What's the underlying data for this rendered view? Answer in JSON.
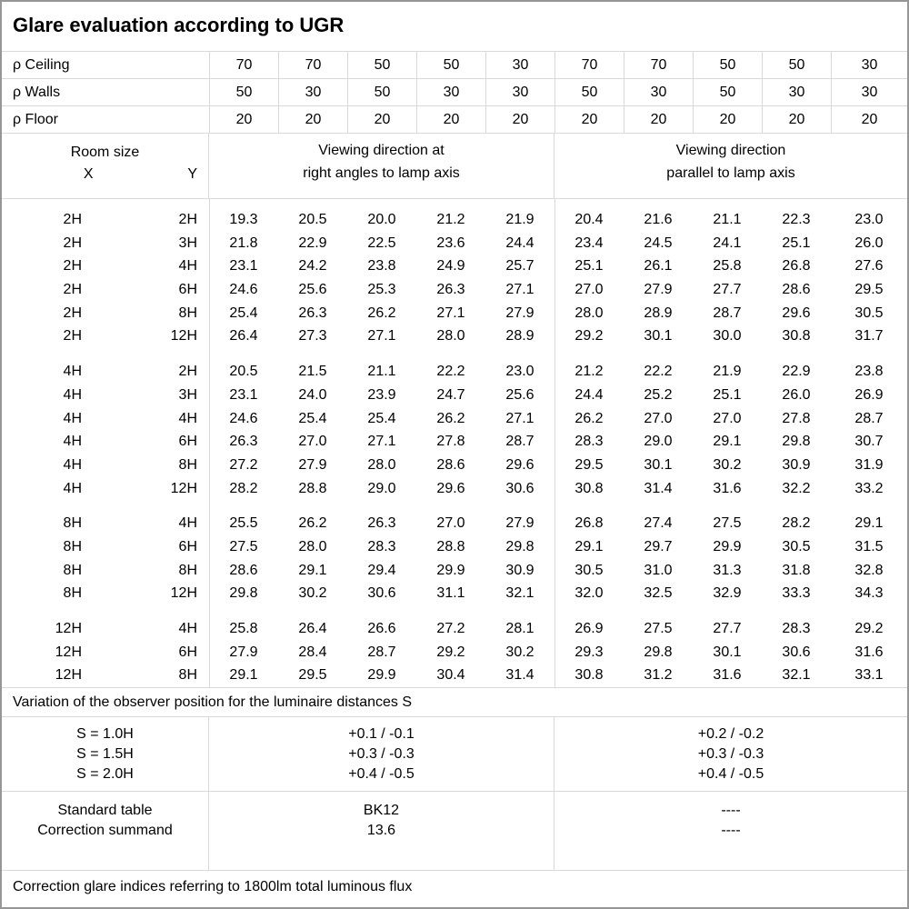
{
  "title": "Glare evaluation according to UGR",
  "reflectances": [
    {
      "label": "ρ Ceiling",
      "values": [
        "70",
        "70",
        "50",
        "50",
        "30",
        "70",
        "70",
        "50",
        "50",
        "30"
      ]
    },
    {
      "label": "ρ Walls",
      "values": [
        "50",
        "30",
        "50",
        "30",
        "30",
        "50",
        "30",
        "50",
        "30",
        "30"
      ]
    },
    {
      "label": "ρ Floor",
      "values": [
        "20",
        "20",
        "20",
        "20",
        "20",
        "20",
        "20",
        "20",
        "20",
        "20"
      ]
    }
  ],
  "header": {
    "room_size_label": "Room size",
    "x_label": "X",
    "y_label": "Y",
    "section1_line1": "Viewing direction at",
    "section1_line2": "right angles to lamp axis",
    "section2_line1": "Viewing direction",
    "section2_line2": "parallel to lamp axis"
  },
  "groups": [
    {
      "rows": [
        {
          "x": "2H",
          "y": "2H",
          "values": [
            "19.3",
            "20.5",
            "20.0",
            "21.2",
            "21.9",
            "20.4",
            "21.6",
            "21.1",
            "22.3",
            "23.0"
          ]
        },
        {
          "x": "2H",
          "y": "3H",
          "values": [
            "21.8",
            "22.9",
            "22.5",
            "23.6",
            "24.4",
            "23.4",
            "24.5",
            "24.1",
            "25.1",
            "26.0"
          ]
        },
        {
          "x": "2H",
          "y": "4H",
          "values": [
            "23.1",
            "24.2",
            "23.8",
            "24.9",
            "25.7",
            "25.1",
            "26.1",
            "25.8",
            "26.8",
            "27.6"
          ]
        },
        {
          "x": "2H",
          "y": "6H",
          "values": [
            "24.6",
            "25.6",
            "25.3",
            "26.3",
            "27.1",
            "27.0",
            "27.9",
            "27.7",
            "28.6",
            "29.5"
          ]
        },
        {
          "x": "2H",
          "y": "8H",
          "values": [
            "25.4",
            "26.3",
            "26.2",
            "27.1",
            "27.9",
            "28.0",
            "28.9",
            "28.7",
            "29.6",
            "30.5"
          ]
        },
        {
          "x": "2H",
          "y": "12H",
          "values": [
            "26.4",
            "27.3",
            "27.1",
            "28.0",
            "28.9",
            "29.2",
            "30.1",
            "30.0",
            "30.8",
            "31.7"
          ]
        }
      ]
    },
    {
      "rows": [
        {
          "x": "4H",
          "y": "2H",
          "values": [
            "20.5",
            "21.5",
            "21.1",
            "22.2",
            "23.0",
            "21.2",
            "22.2",
            "21.9",
            "22.9",
            "23.8"
          ]
        },
        {
          "x": "4H",
          "y": "3H",
          "values": [
            "23.1",
            "24.0",
            "23.9",
            "24.7",
            "25.6",
            "24.4",
            "25.2",
            "25.1",
            "26.0",
            "26.9"
          ]
        },
        {
          "x": "4H",
          "y": "4H",
          "values": [
            "24.6",
            "25.4",
            "25.4",
            "26.2",
            "27.1",
            "26.2",
            "27.0",
            "27.0",
            "27.8",
            "28.7"
          ]
        },
        {
          "x": "4H",
          "y": "6H",
          "values": [
            "26.3",
            "27.0",
            "27.1",
            "27.8",
            "28.7",
            "28.3",
            "29.0",
            "29.1",
            "29.8",
            "30.7"
          ]
        },
        {
          "x": "4H",
          "y": "8H",
          "values": [
            "27.2",
            "27.9",
            "28.0",
            "28.6",
            "29.6",
            "29.5",
            "30.1",
            "30.2",
            "30.9",
            "31.9"
          ]
        },
        {
          "x": "4H",
          "y": "12H",
          "values": [
            "28.2",
            "28.8",
            "29.0",
            "29.6",
            "30.6",
            "30.8",
            "31.4",
            "31.6",
            "32.2",
            "33.2"
          ]
        }
      ]
    },
    {
      "rows": [
        {
          "x": "8H",
          "y": "4H",
          "values": [
            "25.5",
            "26.2",
            "26.3",
            "27.0",
            "27.9",
            "26.8",
            "27.4",
            "27.5",
            "28.2",
            "29.1"
          ]
        },
        {
          "x": "8H",
          "y": "6H",
          "values": [
            "27.5",
            "28.0",
            "28.3",
            "28.8",
            "29.8",
            "29.1",
            "29.7",
            "29.9",
            "30.5",
            "31.5"
          ]
        },
        {
          "x": "8H",
          "y": "8H",
          "values": [
            "28.6",
            "29.1",
            "29.4",
            "29.9",
            "30.9",
            "30.5",
            "31.0",
            "31.3",
            "31.8",
            "32.8"
          ]
        },
        {
          "x": "8H",
          "y": "12H",
          "values": [
            "29.8",
            "30.2",
            "30.6",
            "31.1",
            "32.1",
            "32.0",
            "32.5",
            "32.9",
            "33.3",
            "34.3"
          ]
        }
      ]
    },
    {
      "rows": [
        {
          "x": "12H",
          "y": "4H",
          "values": [
            "25.8",
            "26.4",
            "26.6",
            "27.2",
            "28.1",
            "26.9",
            "27.5",
            "27.7",
            "28.3",
            "29.2"
          ]
        },
        {
          "x": "12H",
          "y": "6H",
          "values": [
            "27.9",
            "28.4",
            "28.7",
            "29.2",
            "30.2",
            "29.3",
            "29.8",
            "30.1",
            "30.6",
            "31.6"
          ]
        },
        {
          "x": "12H",
          "y": "8H",
          "values": [
            "29.1",
            "29.5",
            "29.9",
            "30.4",
            "31.4",
            "30.8",
            "31.2",
            "31.6",
            "32.1",
            "33.1"
          ]
        }
      ]
    }
  ],
  "variation_note": "Variation of the observer position for the luminaire distances S",
  "s_section": {
    "labels": [
      "S = 1.0H",
      "S = 1.5H",
      "S = 2.0H"
    ],
    "right_angles": [
      "+0.1 / -0.1",
      "+0.3 / -0.3",
      "+0.4 / -0.5"
    ],
    "parallel": [
      "+0.2 / -0.2",
      "+0.3 / -0.3",
      "+0.4 / -0.5"
    ]
  },
  "summary": {
    "labels": [
      "Standard table",
      "Correction summand"
    ],
    "mid_values": [
      "BK12",
      "13.6"
    ],
    "right_values": [
      "----",
      "----"
    ]
  },
  "footer_note": "Correction glare indices referring to 1800lm total luminous flux"
}
